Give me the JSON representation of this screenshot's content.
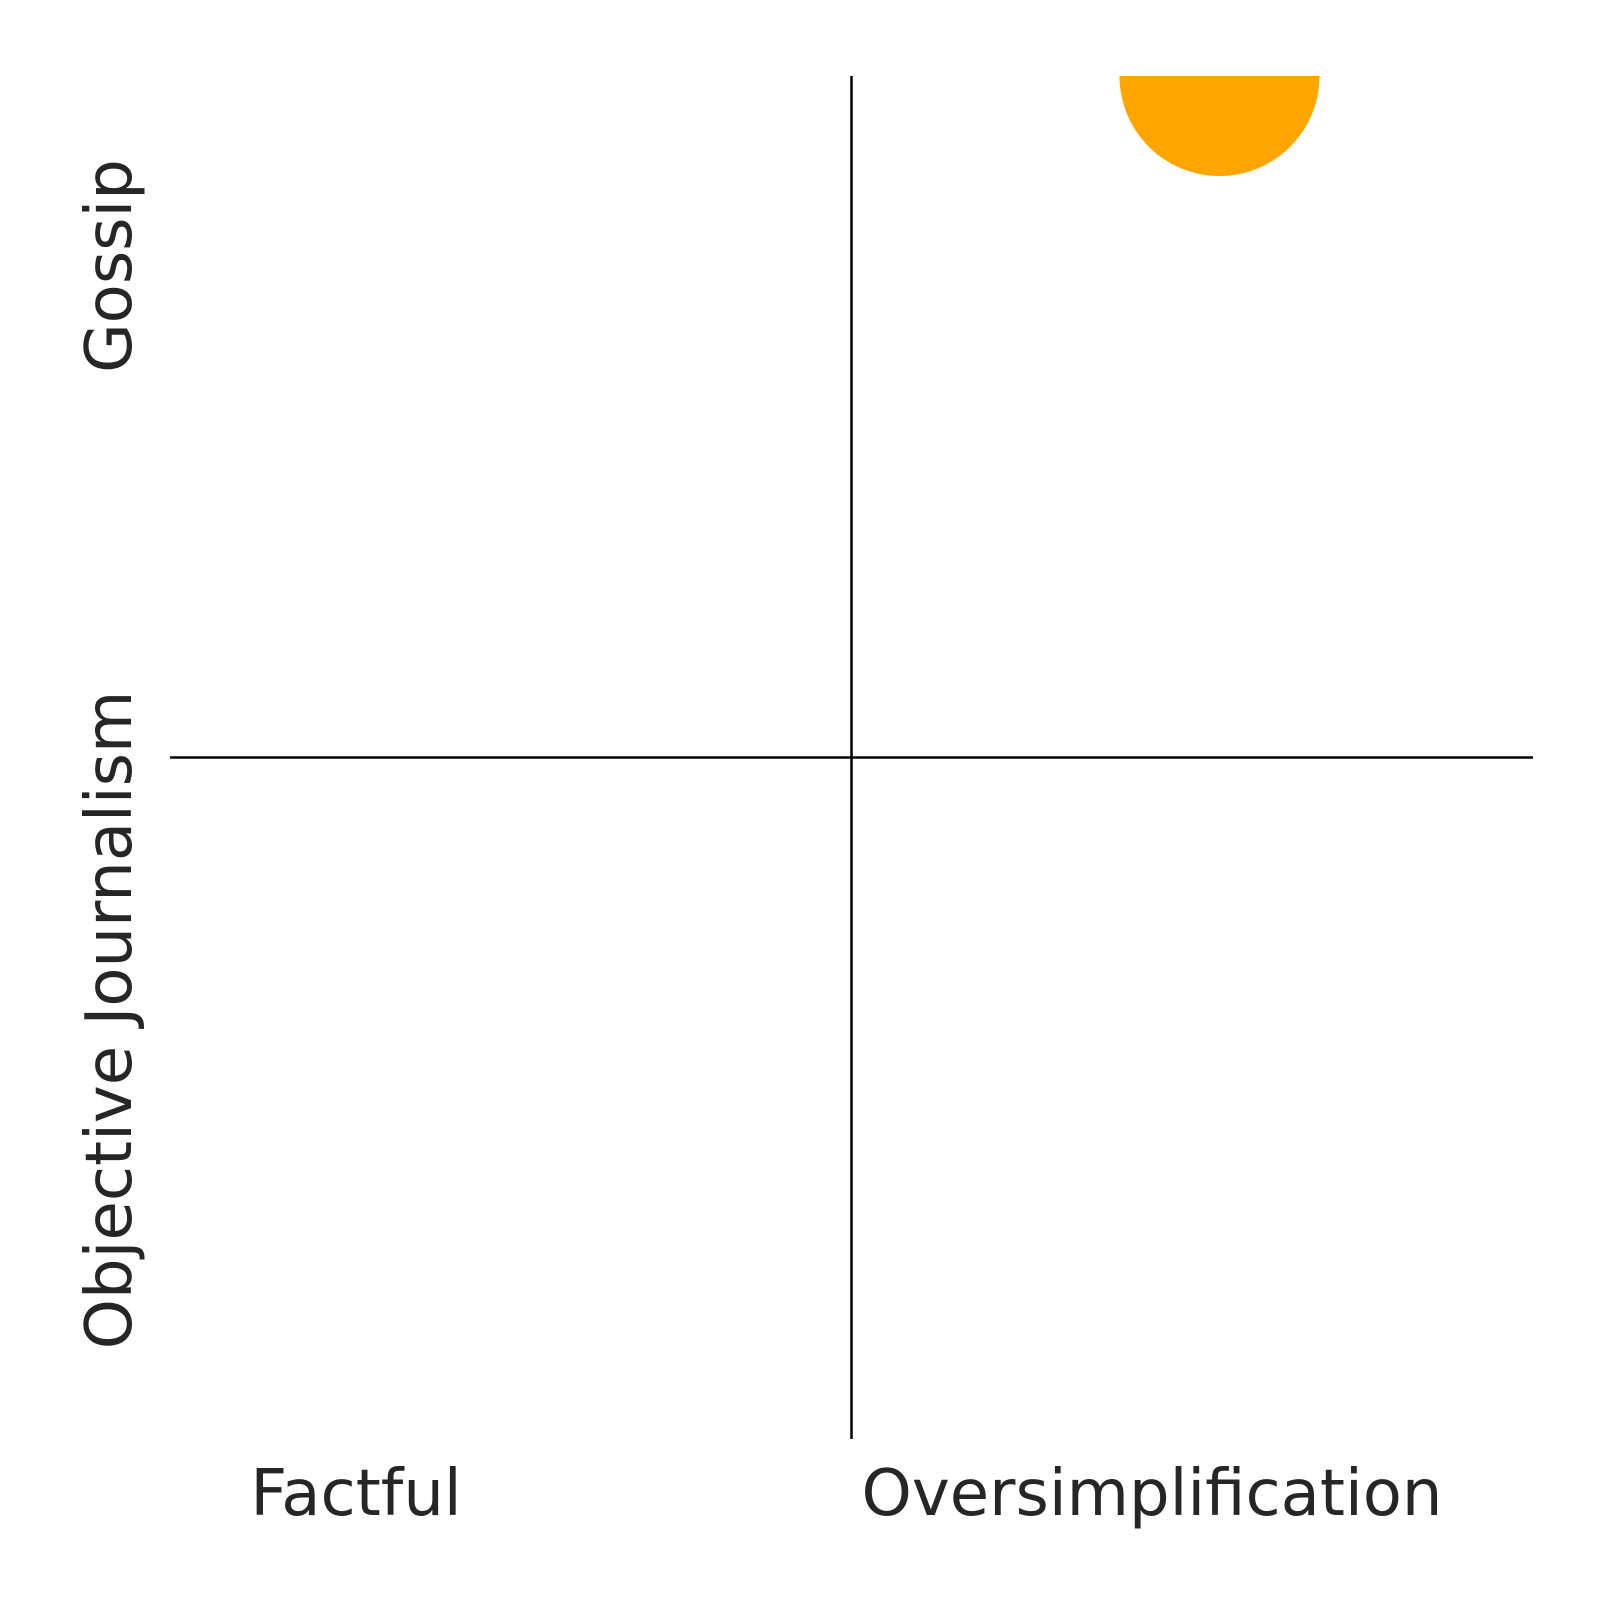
{
  "chart_data": {
    "type": "scatter",
    "title": "",
    "xlim": [
      -1,
      1
    ],
    "ylim": [
      -1,
      1
    ],
    "grid": false,
    "quadrant_axes": true,
    "x_axis_labels": {
      "negative": "Factful",
      "positive": "Oversimplification"
    },
    "y_axis_labels": {
      "negative": "Objective Journalism",
      "positive": "Gossip"
    },
    "series": [
      {
        "points": [
          {
            "x": 0.54,
            "y": 1.0
          }
        ],
        "color": "#ffa500",
        "clipped_at_top": true
      }
    ]
  }
}
